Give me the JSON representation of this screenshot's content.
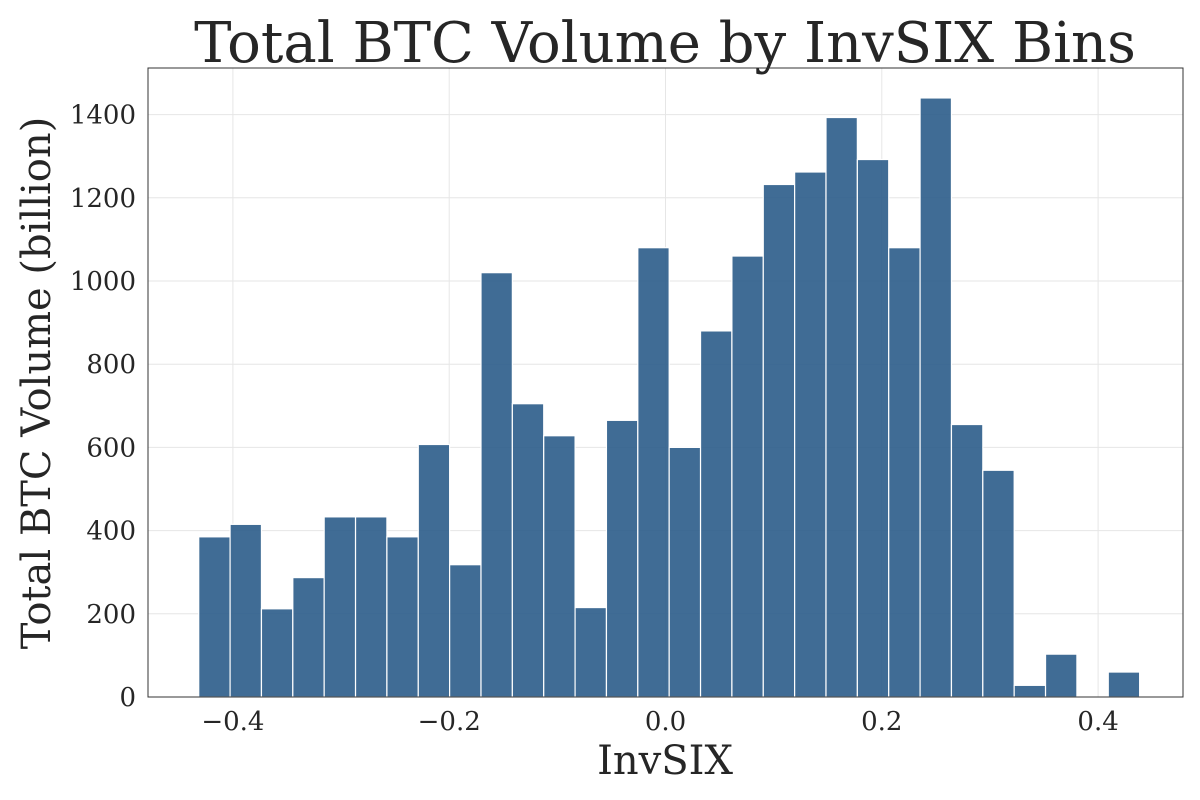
{
  "chart_data": {
    "type": "bar",
    "title": "Total BTC Volume by InvSIX Bins",
    "xlabel": "InvSIX",
    "ylabel": "Total BTC Volume (billion)",
    "xlim": [
      -0.4785,
      0.4785
    ],
    "ylim": [
      0,
      1512
    ],
    "x_ticks": [
      -0.4,
      -0.2,
      0.0,
      0.2,
      0.4
    ],
    "x_tick_labels": [
      "−0.4",
      "−0.2",
      "0.0",
      "0.2",
      "0.4"
    ],
    "y_ticks": [
      0,
      200,
      400,
      600,
      800,
      1000,
      1200,
      1400
    ],
    "y_tick_labels": [
      "0",
      "200",
      "400",
      "600",
      "800",
      "1000",
      "1200",
      "1400"
    ],
    "grid": true,
    "bar_color": "#2b5c8a",
    "bins": [
      {
        "x0": -0.4316,
        "x1": -0.4026,
        "value": 385
      },
      {
        "x0": -0.4026,
        "x1": -0.3736,
        "value": 415
      },
      {
        "x0": -0.3736,
        "x1": -0.3446,
        "value": 212
      },
      {
        "x0": -0.3446,
        "x1": -0.3156,
        "value": 287
      },
      {
        "x0": -0.3156,
        "x1": -0.2866,
        "value": 433
      },
      {
        "x0": -0.2866,
        "x1": -0.2576,
        "value": 433
      },
      {
        "x0": -0.2576,
        "x1": -0.2286,
        "value": 385
      },
      {
        "x0": -0.2286,
        "x1": -0.1996,
        "value": 607
      },
      {
        "x0": -0.1996,
        "x1": -0.1706,
        "value": 318
      },
      {
        "x0": -0.1706,
        "x1": -0.1416,
        "value": 1020
      },
      {
        "x0": -0.1416,
        "x1": -0.1126,
        "value": 705
      },
      {
        "x0": -0.1126,
        "x1": -0.0836,
        "value": 628
      },
      {
        "x0": -0.0836,
        "x1": -0.0546,
        "value": 215
      },
      {
        "x0": -0.0546,
        "x1": -0.0256,
        "value": 665
      },
      {
        "x0": -0.0256,
        "x1": 0.0034,
        "value": 1080
      },
      {
        "x0": 0.0034,
        "x1": 0.0324,
        "value": 600
      },
      {
        "x0": 0.0324,
        "x1": 0.0614,
        "value": 880
      },
      {
        "x0": 0.0614,
        "x1": 0.0904,
        "value": 1060
      },
      {
        "x0": 0.0904,
        "x1": 0.1194,
        "value": 1232
      },
      {
        "x0": 0.1194,
        "x1": 0.1484,
        "value": 1262
      },
      {
        "x0": 0.1484,
        "x1": 0.1774,
        "value": 1393
      },
      {
        "x0": 0.1774,
        "x1": 0.2064,
        "value": 1292
      },
      {
        "x0": 0.2064,
        "x1": 0.2354,
        "value": 1080
      },
      {
        "x0": 0.2354,
        "x1": 0.2644,
        "value": 1440
      },
      {
        "x0": 0.2644,
        "x1": 0.2934,
        "value": 655
      },
      {
        "x0": 0.2934,
        "x1": 0.3224,
        "value": 545
      },
      {
        "x0": 0.3224,
        "x1": 0.3514,
        "value": 28
      },
      {
        "x0": 0.3514,
        "x1": 0.3804,
        "value": 103
      },
      {
        "x0": 0.3804,
        "x1": 0.4094,
        "value": 0
      },
      {
        "x0": 0.4094,
        "x1": 0.4384,
        "value": 60
      }
    ]
  }
}
